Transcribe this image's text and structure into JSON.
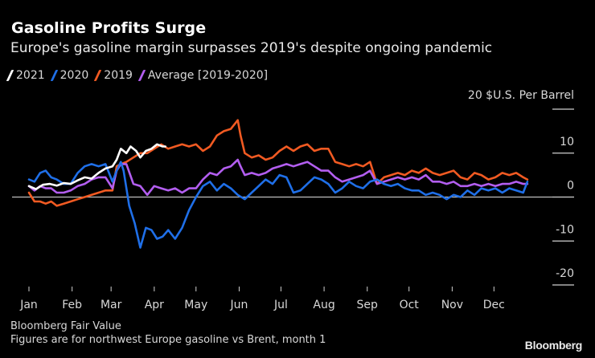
{
  "chart_data": {
    "type": "line",
    "title": "Gasoline Profits Surge",
    "subtitle": "Europe's gasoline margin surpasses 2019's despite ongoing pandemic",
    "ylabel": "$U.S. Per Barrel",
    "unit_label": "20 $U.S. Per Barrel",
    "xlabel": "",
    "ylim": [
      -20,
      20
    ],
    "yticks": [
      20,
      10,
      0,
      -10,
      -20
    ],
    "ytick_labels": [
      "",
      "10",
      "0",
      "-10",
      "-20"
    ],
    "x_unit": "day of year",
    "xlim": [
      0,
      365
    ],
    "xticks": [
      0,
      31,
      59,
      90,
      120,
      151,
      181,
      212,
      243,
      273,
      304,
      334
    ],
    "xtick_labels": [
      "Jan",
      "Feb",
      "Mar",
      "Apr",
      "May",
      "Jun",
      "Jul",
      "Aug",
      "Sep",
      "Oct",
      "Nov",
      "Dec"
    ],
    "zero_line": true,
    "grid": false,
    "legend_position": "top-left",
    "series": [
      {
        "name": "2021",
        "color": "#ffffff",
        "x": [
          0,
          5,
          10,
          15,
          20,
          25,
          30,
          35,
          40,
          45,
          50,
          55,
          60,
          63,
          66,
          70,
          73,
          77,
          80,
          84,
          88,
          92,
          96,
          98
        ],
        "y": [
          2.5,
          1.8,
          2.8,
          3.0,
          2.6,
          3.2,
          3.0,
          3.8,
          4.5,
          4.2,
          5.5,
          6.5,
          7.0,
          8.5,
          11.0,
          10.0,
          11.5,
          10.5,
          9.0,
          10.5,
          11.0,
          12.0,
          11.5,
          11.5
        ]
      },
      {
        "name": "2020",
        "color": "#1f6fe8",
        "x": [
          0,
          4,
          8,
          12,
          16,
          20,
          25,
          30,
          35,
          40,
          45,
          50,
          55,
          60,
          63,
          66,
          68,
          72,
          76,
          80,
          84,
          88,
          92,
          96,
          100,
          105,
          110,
          115,
          120,
          125,
          130,
          135,
          140,
          145,
          150,
          155,
          160,
          165,
          170,
          175,
          180,
          185,
          190,
          195,
          200,
          205,
          210,
          215,
          220,
          225,
          230,
          235,
          240,
          245,
          250,
          255,
          260,
          265,
          270,
          275,
          280,
          285,
          290,
          295,
          300,
          305,
          310,
          315,
          320,
          325,
          330,
          335,
          340,
          345,
          350,
          355,
          358
        ],
        "y": [
          4.0,
          3.5,
          5.5,
          6.0,
          4.5,
          4.0,
          3.0,
          3.0,
          5.5,
          7.0,
          7.5,
          7.0,
          7.5,
          3.5,
          6.0,
          8.0,
          6.0,
          -2.0,
          -6.0,
          -11.5,
          -7.0,
          -7.5,
          -9.5,
          -9.0,
          -7.5,
          -9.5,
          -7.0,
          -3.0,
          0.0,
          2.5,
          3.5,
          1.5,
          3.0,
          2.0,
          0.5,
          -0.5,
          1.0,
          2.5,
          4.0,
          3.0,
          5.0,
          4.5,
          1.0,
          1.5,
          3.0,
          4.5,
          4.0,
          3.0,
          1.0,
          2.0,
          3.5,
          2.5,
          2.0,
          3.5,
          4.0,
          3.0,
          2.5,
          3.0,
          2.0,
          1.5,
          1.5,
          0.5,
          1.0,
          0.5,
          -0.5,
          0.5,
          0.0,
          1.5,
          0.5,
          2.0,
          1.5,
          2.0,
          1.0,
          2.0,
          1.5,
          1.0,
          3.5
        ]
      },
      {
        "name": "2019",
        "color": "#f15a22",
        "x": [
          0,
          4,
          8,
          12,
          16,
          20,
          25,
          30,
          35,
          40,
          45,
          50,
          55,
          60,
          63,
          66,
          70,
          75,
          80,
          85,
          90,
          95,
          100,
          105,
          110,
          115,
          120,
          125,
          130,
          135,
          140,
          145,
          150,
          152,
          155,
          160,
          165,
          170,
          175,
          180,
          185,
          190,
          195,
          200,
          205,
          210,
          215,
          220,
          225,
          230,
          235,
          240,
          245,
          250,
          255,
          260,
          265,
          270,
          275,
          280,
          285,
          290,
          295,
          300,
          305,
          310,
          315,
          320,
          325,
          330,
          335,
          340,
          345,
          350,
          355,
          358
        ],
        "y": [
          1.0,
          -1.0,
          -1.0,
          -1.5,
          -1.0,
          -2.0,
          -1.5,
          -1.0,
          -0.5,
          0.0,
          0.5,
          1.0,
          1.5,
          1.5,
          7.0,
          7.5,
          8.0,
          9.0,
          10.0,
          10.0,
          11.0,
          12.0,
          11.0,
          11.5,
          12.0,
          11.5,
          12.0,
          10.5,
          11.5,
          14.0,
          15.0,
          15.5,
          17.5,
          14.0,
          10.0,
          9.0,
          9.5,
          8.5,
          9.0,
          10.5,
          11.5,
          10.5,
          11.5,
          12.0,
          10.5,
          11.0,
          11.0,
          8.0,
          7.5,
          7.0,
          7.5,
          7.0,
          8.0,
          3.0,
          4.5,
          5.0,
          5.5,
          5.0,
          6.0,
          5.5,
          6.5,
          5.5,
          5.0,
          5.5,
          6.0,
          4.5,
          4.0,
          5.5,
          5.0,
          4.0,
          4.5,
          5.5,
          5.0,
          5.5,
          4.5,
          4.0
        ]
      },
      {
        "name": "Average [2019-2020]",
        "color": "#b35ef0",
        "x": [
          0,
          4,
          8,
          12,
          16,
          20,
          25,
          30,
          35,
          40,
          45,
          50,
          55,
          60,
          63,
          66,
          70,
          75,
          80,
          85,
          90,
          95,
          100,
          105,
          110,
          115,
          120,
          125,
          130,
          135,
          140,
          145,
          150,
          152,
          155,
          160,
          165,
          170,
          175,
          180,
          185,
          190,
          195,
          200,
          205,
          210,
          215,
          220,
          225,
          230,
          235,
          240,
          245,
          250,
          255,
          260,
          265,
          270,
          275,
          280,
          285,
          290,
          295,
          300,
          305,
          310,
          315,
          320,
          325,
          330,
          335,
          340,
          345,
          350,
          355,
          358
        ],
        "y": [
          2.5,
          1.5,
          2.5,
          2.0,
          2.0,
          1.0,
          1.0,
          1.5,
          2.5,
          3.0,
          4.0,
          4.5,
          4.5,
          2.0,
          6.0,
          7.5,
          7.5,
          3.0,
          2.5,
          0.5,
          2.5,
          2.0,
          1.5,
          2.0,
          1.0,
          2.0,
          2.0,
          4.0,
          5.5,
          5.0,
          6.5,
          7.0,
          8.5,
          7.0,
          5.0,
          5.5,
          5.0,
          5.5,
          6.5,
          7.0,
          7.5,
          7.0,
          7.5,
          8.0,
          7.0,
          6.0,
          6.0,
          4.5,
          3.5,
          4.0,
          4.5,
          5.0,
          6.0,
          3.0,
          3.5,
          4.0,
          4.5,
          4.0,
          4.5,
          4.0,
          5.0,
          3.5,
          3.5,
          3.0,
          3.5,
          2.5,
          2.5,
          3.0,
          2.5,
          3.0,
          2.5,
          3.0,
          3.0,
          3.5,
          3.0,
          3.0
        ]
      }
    ]
  },
  "legend": [
    {
      "label": "2021",
      "color": "#ffffff"
    },
    {
      "label": "2020",
      "color": "#1f6fe8"
    },
    {
      "label": "2019",
      "color": "#f15a22"
    },
    {
      "label": "Average [2019-2020]",
      "color": "#b35ef0"
    }
  ],
  "footer": {
    "source": "Bloomberg Fair Value",
    "note": "Figures are for northwest Europe gasoline vs Brent, month 1",
    "logo": "Bloomberg"
  }
}
